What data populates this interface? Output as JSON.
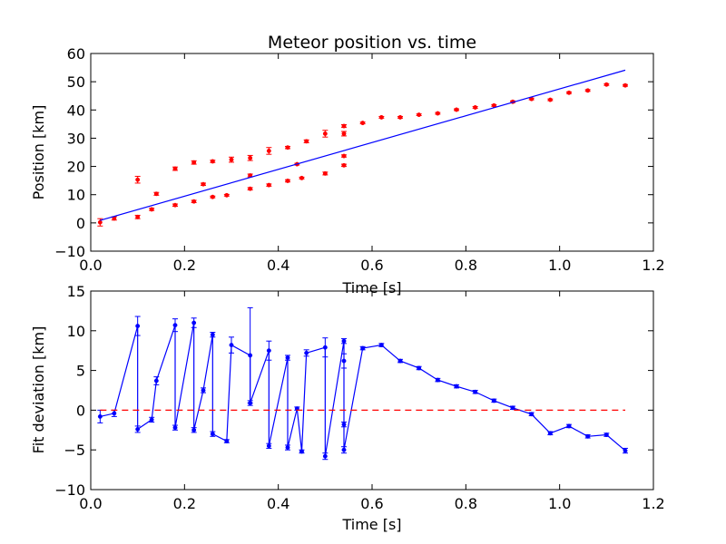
{
  "chart_data": [
    {
      "type": "scatter",
      "title": "Meteor position vs. time",
      "xlabel": "Time [s]",
      "ylabel": "Position [km]",
      "xlim": [
        0.0,
        1.2
      ],
      "ylim": [
        -10,
        60
      ],
      "xticks": [
        "0.0",
        "0.2",
        "0.4",
        "0.6",
        "0.8",
        "1.0",
        "1.2"
      ],
      "yticks": [
        "−10",
        "0",
        "10",
        "20",
        "30",
        "40",
        "50",
        "60"
      ],
      "grid": false,
      "colors": {
        "points": "#ff0000",
        "fit_line": "#0000ff"
      },
      "series": [
        {
          "style": "points-with-errorbars",
          "x": [
            0.02,
            0.05,
            0.1,
            0.1,
            0.13,
            0.14,
            0.18,
            0.18,
            0.22,
            0.22,
            0.24,
            0.26,
            0.26,
            0.29,
            0.3,
            0.34,
            0.34,
            0.34,
            0.38,
            0.38,
            0.42,
            0.42,
            0.44,
            0.45,
            0.46,
            0.5,
            0.5,
            0.54,
            0.54,
            0.54,
            0.54,
            0.58,
            0.62,
            0.66,
            0.7,
            0.74,
            0.78,
            0.82,
            0.86,
            0.9,
            0.94,
            0.98,
            1.02,
            1.06,
            1.1,
            1.14
          ],
          "y": [
            0.2,
            1.6,
            2.1,
            15.3,
            4.8,
            10.3,
            6.3,
            19.2,
            7.6,
            21.4,
            13.7,
            9.2,
            21.8,
            9.8,
            22.4,
            12.1,
            16.8,
            23.0,
            13.4,
            25.5,
            14.9,
            26.7,
            20.8,
            15.9,
            28.9,
            17.5,
            31.6,
            20.4,
            23.7,
            31.6,
            34.3,
            35.4,
            37.4,
            37.4,
            38.3,
            38.8,
            40.1,
            40.9,
            41.6,
            42.9,
            43.9,
            43.6,
            46.1,
            46.9,
            49.0,
            48.7
          ],
          "err": [
            1.3,
            0.6,
            0.6,
            1.2,
            0.4,
            0.5,
            0.4,
            0.6,
            0.4,
            0.6,
            0.4,
            0.3,
            0.4,
            0.3,
            0.9,
            0.4,
            0.5,
            0.9,
            0.4,
            1.2,
            0.4,
            0.4,
            0.3,
            0.3,
            0.5,
            0.5,
            1.2,
            0.4,
            0.4,
            0.8,
            0.5,
            0.3,
            0.3,
            0.3,
            0.3,
            0.3,
            0.3,
            0.3,
            0.3,
            0.3,
            0.3,
            0.3,
            0.3,
            0.3,
            0.3,
            0.3
          ]
        },
        {
          "style": "line",
          "x": [
            0.02,
            1.14
          ],
          "y": [
            0.9,
            54.1
          ]
        }
      ]
    },
    {
      "type": "line",
      "xlabel": "Time [s]",
      "ylabel": "Fit deviation [km]",
      "xlim": [
        0.0,
        1.2
      ],
      "ylim": [
        -10,
        15
      ],
      "xticks": [
        "0.0",
        "0.2",
        "0.4",
        "0.6",
        "0.8",
        "1.0",
        "1.2"
      ],
      "yticks": [
        "−10",
        "−5",
        "0",
        "5",
        "10",
        "15"
      ],
      "grid": false,
      "colors": {
        "deviation": "#0000ff",
        "zero_line": "#ff0000"
      },
      "series": [
        {
          "style": "line-with-errorbars",
          "x": [
            0.02,
            0.05,
            0.1,
            0.1,
            0.13,
            0.14,
            0.18,
            0.18,
            0.22,
            0.22,
            0.24,
            0.26,
            0.26,
            0.29,
            0.3,
            0.34,
            0.34,
            0.38,
            0.38,
            0.42,
            0.42,
            0.44,
            0.45,
            0.46,
            0.5,
            0.5,
            0.54,
            0.54,
            0.54,
            0.54,
            0.58,
            0.62,
            0.66,
            0.7,
            0.74,
            0.78,
            0.82,
            0.86,
            0.9,
            0.94,
            0.98,
            1.02,
            1.06,
            1.1,
            1.14
          ],
          "y": [
            -0.8,
            -0.4,
            10.6,
            -2.4,
            -1.2,
            3.7,
            10.7,
            -2.2,
            11.0,
            -2.5,
            2.5,
            9.5,
            -3.0,
            -3.9,
            8.2,
            6.9,
            0.9,
            7.5,
            -4.5,
            6.6,
            -4.7,
            0.2,
            -5.2,
            7.2,
            7.9,
            -5.8,
            8.7,
            6.2,
            -1.8,
            -5.0,
            7.8,
            8.2,
            6.2,
            5.3,
            3.8,
            3.0,
            2.3,
            1.2,
            0.3,
            -0.5,
            -2.9,
            -2.0,
            -3.3,
            -3.1,
            -5.1
          ],
          "err": [
            0.8,
            0.4,
            1.2,
            0.4,
            0.3,
            0.5,
            0.8,
            0.3,
            0.6,
            0.3,
            0.3,
            0.3,
            0.3,
            0.2,
            1.0,
            6.0,
            0.3,
            1.2,
            0.3,
            0.3,
            0.3,
            0.2,
            0.2,
            0.4,
            1.2,
            0.4,
            0.3,
            0.9,
            0.3,
            0.4,
            0.2,
            0.2,
            0.2,
            0.2,
            0.2,
            0.2,
            0.2,
            0.2,
            0.2,
            0.2,
            0.2,
            0.2,
            0.2,
            0.2,
            0.3
          ]
        },
        {
          "style": "dashed-line",
          "x": [
            0.02,
            1.14
          ],
          "y": [
            0,
            0
          ]
        }
      ]
    }
  ]
}
